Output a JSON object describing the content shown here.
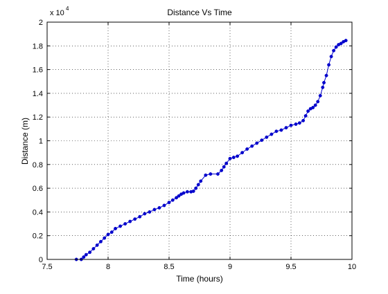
{
  "chart_data": {
    "type": "line",
    "title": "Distance Vs Time",
    "xlabel": "Time (hours)",
    "ylabel": "Distance (m)",
    "xlim": [
      7.5,
      10
    ],
    "ylim": [
      0,
      20000
    ],
    "y_exponent_label": "x 10",
    "y_exponent_power": "4",
    "xticks": [
      7.5,
      8,
      8.5,
      9,
      9.5,
      10
    ],
    "xtick_labels": [
      "7.5",
      "8",
      "8.5",
      "9",
      "9.5",
      "10"
    ],
    "yticks": [
      0,
      2000,
      4000,
      6000,
      8000,
      10000,
      12000,
      14000,
      16000,
      18000,
      20000
    ],
    "ytick_labels": [
      "0",
      "0.2",
      "0.4",
      "0.6",
      "0.8",
      "1",
      "1.2",
      "1.4",
      "1.6",
      "1.8",
      "2"
    ],
    "grid": true,
    "line_color": "#0000cc",
    "series": [
      {
        "marker": "dot",
        "x": [
          7.74,
          7.78,
          7.8,
          7.82,
          7.85,
          7.88,
          7.91,
          7.94,
          7.97,
          8.0,
          8.03,
          8.06,
          8.1,
          8.14,
          8.18,
          8.22,
          8.26,
          8.3,
          8.34,
          8.38,
          8.42,
          8.46,
          8.5,
          8.53,
          8.56,
          8.58,
          8.6,
          8.62,
          8.65,
          8.68,
          8.7,
          8.72,
          8.74,
          8.76,
          8.8,
          8.84,
          8.9,
          8.93,
          8.95,
          8.97,
          9.0,
          9.03,
          9.06,
          9.1,
          9.14,
          9.18,
          9.22,
          9.26,
          9.3,
          9.34,
          9.38,
          9.42,
          9.46,
          9.5,
          9.54,
          9.57,
          9.6,
          9.62,
          9.64,
          9.66,
          9.68,
          9.7,
          9.72,
          9.74,
          9.76,
          9.77,
          9.79,
          9.81,
          9.83,
          9.85,
          9.87,
          9.89,
          9.91,
          9.93,
          9.95
        ],
        "y": [
          0,
          0,
          200,
          400,
          600,
          900,
          1200,
          1500,
          1800,
          2100,
          2300,
          2600,
          2800,
          3000,
          3200,
          3400,
          3600,
          3850,
          4000,
          4200,
          4350,
          4550,
          4800,
          5000,
          5200,
          5350,
          5500,
          5600,
          5700,
          5700,
          5750,
          6000,
          6300,
          6600,
          7100,
          7200,
          7200,
          7500,
          7800,
          8100,
          8500,
          8600,
          8700,
          9000,
          9300,
          9550,
          9800,
          10050,
          10300,
          10550,
          10800,
          10900,
          11100,
          11300,
          11400,
          11500,
          11700,
          12100,
          12500,
          12700,
          12800,
          13000,
          13300,
          13800,
          14500,
          14900,
          15500,
          16400,
          17100,
          17600,
          17900,
          18100,
          18200,
          18350,
          18450
        ]
      }
    ]
  }
}
